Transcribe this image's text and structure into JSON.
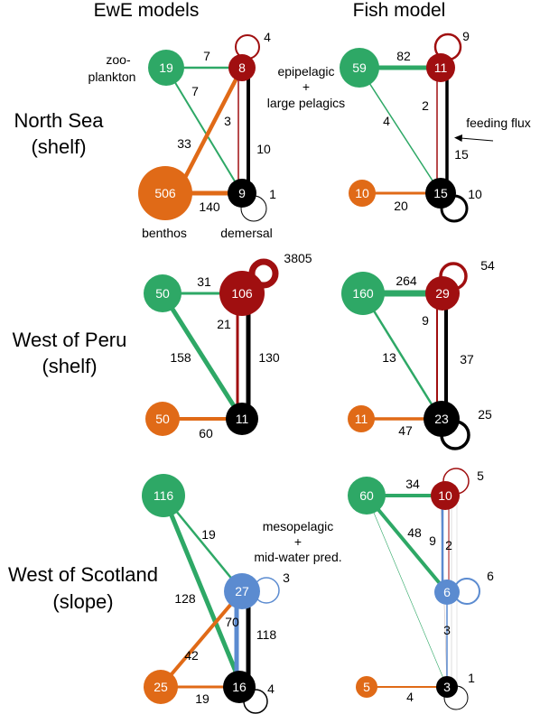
{
  "columns": {
    "left": "EwE models",
    "right": "Fish model"
  },
  "regions": [
    {
      "name": "North Sea",
      "sub": "(shelf)"
    },
    {
      "name": "West of Peru",
      "sub": "(shelf)"
    },
    {
      "name": "West of Scotland",
      "sub": "(slope)"
    }
  ],
  "annotations": {
    "zooplankton_1": "zoo-",
    "zooplankton_2": "plankton",
    "epipelagic_1": "epipelagic",
    "epipelagic_2": "+",
    "epipelagic_3": "large pelagics",
    "feeding_flux": "feeding flux",
    "benthos": "benthos",
    "demersal": "demersal",
    "mesopelagic_1": "mesopelagic",
    "mesopelagic_2": "+",
    "mesopelagic_3": "mid-water pred."
  },
  "colors": {
    "zooplankton": "#2ea866",
    "epipelagic": "#a00f10",
    "demersal": "#000000",
    "benthos": "#e06a17",
    "mesopelagic": "#5b8bd0"
  },
  "panels": {
    "ns_ewe": {
      "nodes": {
        "zoo": "19",
        "epi": "8",
        "dem": "9",
        "ben": "506"
      },
      "fluxes": {
        "zoo_epi": "7",
        "epi_self": "4",
        "zoo_dem": "7",
        "epi_dem": "3",
        "dem_epi": "10",
        "ben_epi": "33",
        "ben_dem": "140",
        "dem_self": "1"
      }
    },
    "ns_fish": {
      "nodes": {
        "zoo": "59",
        "epi": "11",
        "dem": "15",
        "ben": "10"
      },
      "fluxes": {
        "zoo_epi": "82",
        "epi_self": "9",
        "epi_dem": "2",
        "zoo_dem": "4",
        "dem_epi": "15",
        "ben_dem": "20",
        "dem_self": "10"
      }
    },
    "peru_ewe": {
      "nodes": {
        "zoo": "50",
        "epi": "106",
        "dem": "11",
        "ben": "50"
      },
      "fluxes": {
        "zoo_epi": "31",
        "epi_self": "3805",
        "epi_dem": "21",
        "zoo_dem": "158",
        "dem_epi": "130",
        "ben_dem": "60"
      }
    },
    "peru_fish": {
      "nodes": {
        "zoo": "160",
        "epi": "29",
        "dem": "23",
        "ben": "11"
      },
      "fluxes": {
        "zoo_epi": "264",
        "epi_self": "54",
        "epi_dem": "9",
        "zoo_dem": "13",
        "dem_epi": "37",
        "ben_dem": "47",
        "dem_self": "25"
      }
    },
    "scot_ewe": {
      "nodes": {
        "zoo": "116",
        "meso": "27",
        "dem": "16",
        "ben": "25"
      },
      "fluxes": {
        "zoo_meso": "19",
        "meso_self": "3",
        "zoo_dem": "128",
        "ben_meso": "42",
        "meso_dem": "70",
        "dem_meso": "118",
        "ben_dem": "19",
        "dem_self": "4"
      }
    },
    "scot_fish": {
      "nodes": {
        "zoo": "60",
        "epi": "10",
        "meso": "6",
        "dem": "3",
        "ben": "5"
      },
      "fluxes": {
        "zoo_epi": "34",
        "epi_self": "5",
        "zoo_meso": "48",
        "meso_epi": "9",
        "epi_meso": "2",
        "meso_self": "6",
        "meso_dem": "3",
        "dem_self": "1",
        "ben_dem": "4"
      }
    }
  }
}
